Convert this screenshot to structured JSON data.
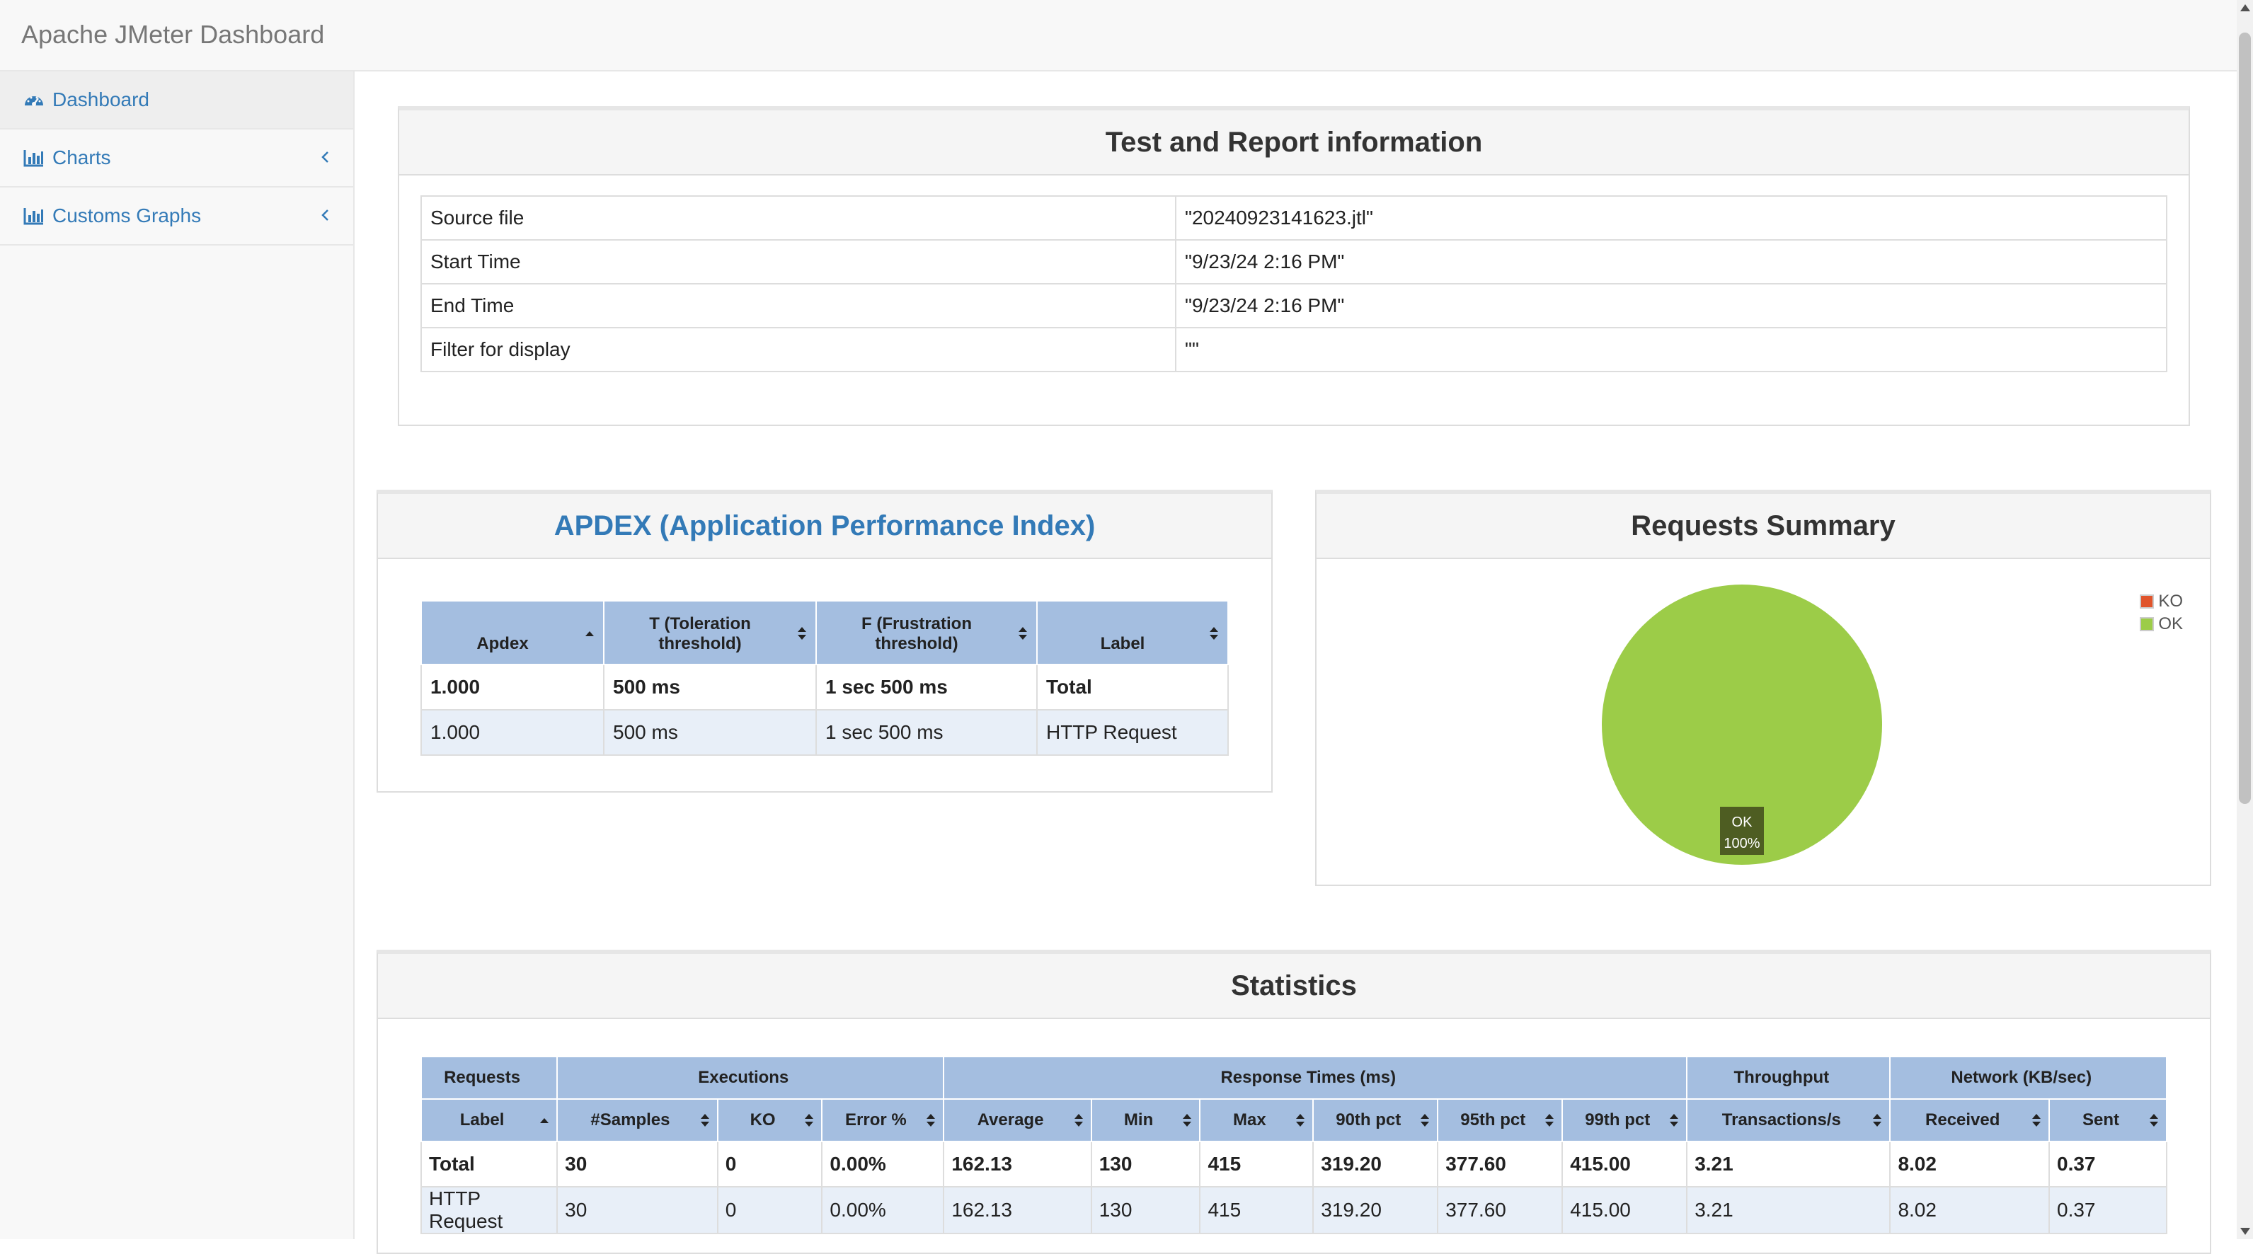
{
  "navbar": {
    "brand": "Apache JMeter Dashboard"
  },
  "sidebar": {
    "items": [
      {
        "label": "Dashboard",
        "icon": "dashboard-icon",
        "active": true
      },
      {
        "label": "Charts",
        "icon": "bar-chart-icon",
        "expandable": true
      },
      {
        "label": "Customs Graphs",
        "icon": "bar-chart-icon",
        "expandable": true
      }
    ]
  },
  "info": {
    "title": "Test and Report information",
    "rows": [
      {
        "key": "Source file",
        "value": "\"20240923141623.jtl\""
      },
      {
        "key": "Start Time",
        "value": "\"9/23/24 2:16 PM\""
      },
      {
        "key": "End Time",
        "value": "\"9/23/24 2:16 PM\""
      },
      {
        "key": "Filter for display",
        "value": "\"\""
      }
    ]
  },
  "apdex": {
    "title": "APDEX (Application Performance Index)",
    "columns": [
      "Apdex",
      "T (Toleration threshold)",
      "F (Frustration threshold)",
      "Label"
    ],
    "rows": [
      [
        "1.000",
        "500 ms",
        "1 sec 500 ms",
        "Total"
      ],
      [
        "1.000",
        "500 ms",
        "1 sec 500 ms",
        "HTTP Request"
      ]
    ]
  },
  "summary": {
    "title": "Requests Summary",
    "legend": [
      {
        "label": "KO",
        "color": "#e0542b"
      },
      {
        "label": "OK",
        "color": "#9ccc48"
      }
    ],
    "slice_label": "OK",
    "slice_percent": "100%"
  },
  "chart_data": {
    "type": "pie",
    "title": "Requests Summary",
    "categories": [
      "KO",
      "OK"
    ],
    "values": [
      0,
      100
    ],
    "colors": [
      "#e0542b",
      "#9ccc48"
    ],
    "legend_position": "top-right"
  },
  "statistics": {
    "title": "Statistics",
    "groups": [
      "Requests",
      "Executions",
      "Response Times (ms)",
      "Throughput",
      "Network (KB/sec)"
    ],
    "columns": [
      "Label",
      "#Samples",
      "KO",
      "Error %",
      "Average",
      "Min",
      "Max",
      "90th pct",
      "95th pct",
      "99th pct",
      "Transactions/s",
      "Received",
      "Sent"
    ],
    "rows": [
      [
        "Total",
        "30",
        "0",
        "0.00%",
        "162.13",
        "130",
        "415",
        "319.20",
        "377.60",
        "415.00",
        "3.21",
        "8.02",
        "0.37"
      ],
      [
        "HTTP Request",
        "30",
        "0",
        "0.00%",
        "162.13",
        "130",
        "415",
        "319.20",
        "377.60",
        "415.00",
        "3.21",
        "8.02",
        "0.37"
      ]
    ]
  },
  "colors": {
    "link": "#337ab7",
    "table_header": "#a4bee0",
    "row_alt": "#e8eff8",
    "ok": "#9ccc48",
    "ko": "#e0542b"
  }
}
